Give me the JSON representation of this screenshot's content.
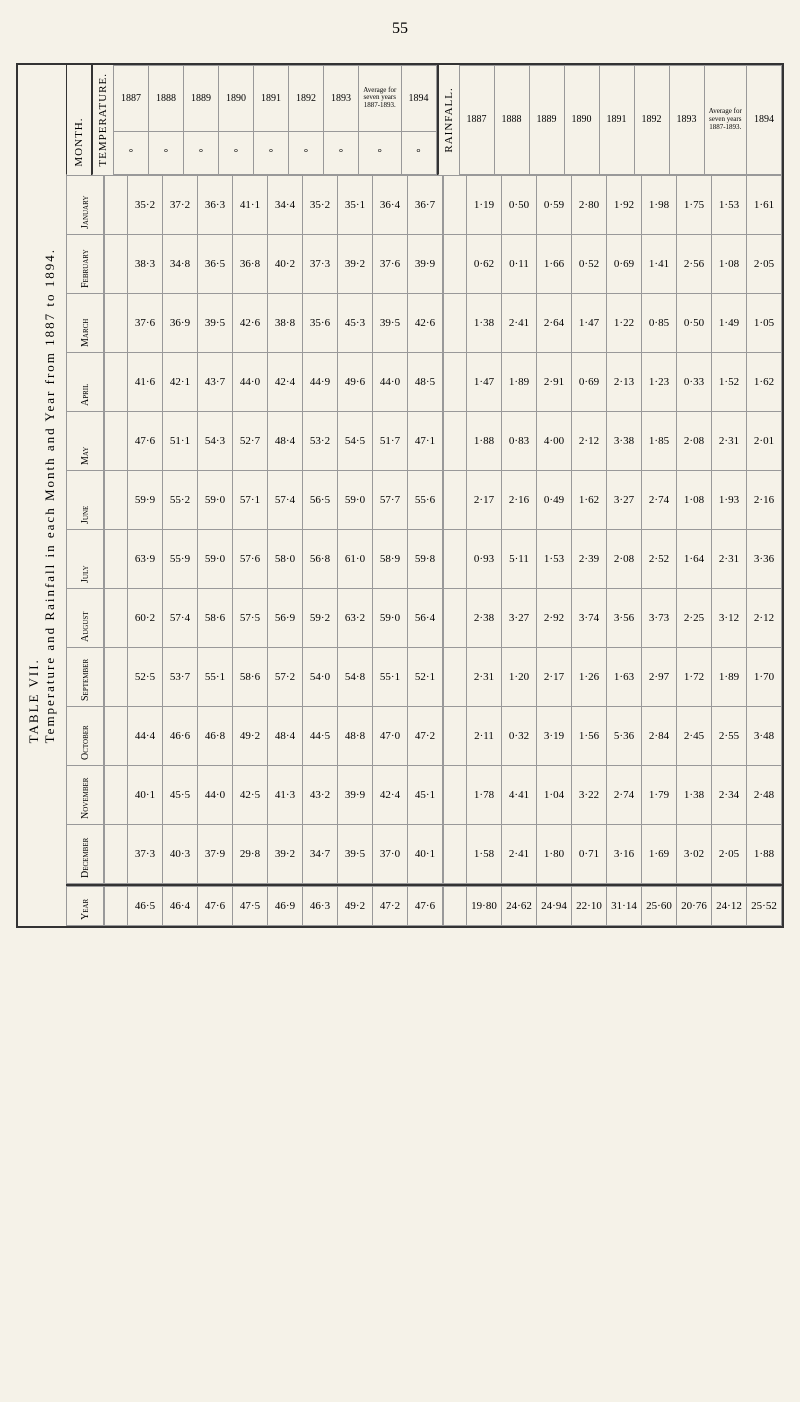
{
  "page_number": "55",
  "table_title": "TABLE VII.",
  "table_subtitle": "Temperature and Rainfall in each Month and Year from 1887 to 1894.",
  "month_header": "MONTH.",
  "year_row_label": "Year",
  "months": [
    "January",
    "February",
    "March",
    "April",
    "May",
    "June",
    "July",
    "August",
    "September",
    "October",
    "November",
    "December"
  ],
  "temperature": {
    "label": "TEMPERATURE.",
    "years": [
      "1887",
      "1888",
      "1889",
      "1890",
      "1891",
      "1892",
      "1893"
    ],
    "avg_label": "Average for seven years 1887-1893.",
    "final_year": "1894",
    "degree_prefix": "°",
    "data": {
      "1887": [
        "35·2",
        "38·3",
        "37·6",
        "41·6",
        "47·6",
        "59·9",
        "63·9",
        "60·2",
        "52·5",
        "44·4",
        "40·1",
        "37·3"
      ],
      "1888": [
        "37·2",
        "34·8",
        "36·9",
        "42·1",
        "51·1",
        "55·2",
        "55·9",
        "57·4",
        "53·7",
        "46·6",
        "45·5",
        "40·3"
      ],
      "1889": [
        "36·3",
        "36·5",
        "39·5",
        "43·7",
        "54·3",
        "59·0",
        "59·0",
        "58·6",
        "55·1",
        "46·8",
        "44·0",
        "37·9"
      ],
      "1890": [
        "41·1",
        "36·8",
        "42·6",
        "44·0",
        "52·7",
        "57·1",
        "57·6",
        "57·5",
        "58·6",
        "49·2",
        "42·5",
        "29·8"
      ],
      "1891": [
        "34·4",
        "40·2",
        "38·8",
        "42·4",
        "48·4",
        "57·4",
        "58·0",
        "56·9",
        "57·2",
        "48·4",
        "41·3",
        "39·2"
      ],
      "1892": [
        "35·2",
        "37·3",
        "35·6",
        "44·9",
        "53·2",
        "56·5",
        "56·8",
        "59·2",
        "54·0",
        "44·5",
        "43·2",
        "34·7"
      ],
      "1893": [
        "35·1",
        "39·2",
        "45·3",
        "49·6",
        "54·5",
        "59·0",
        "61·0",
        "63·2",
        "54·8",
        "48·8",
        "39·9",
        "39·5"
      ],
      "avg": [
        "36·4",
        "37·6",
        "39·5",
        "44·0",
        "51·7",
        "57·7",
        "58·9",
        "59·0",
        "55·1",
        "47·0",
        "42·4",
        "37·0"
      ],
      "1894": [
        "36·7",
        "39·9",
        "42·6",
        "48·5",
        "47·1",
        "55·6",
        "59·8",
        "56·4",
        "52·1",
        "47·2",
        "45·1",
        "40·1"
      ]
    },
    "year_totals": {
      "1887": "46·5",
      "1888": "46·4",
      "1889": "47·6",
      "1890": "47·5",
      "1891": "46·9",
      "1892": "46·3",
      "1893": "49·2",
      "avg": "47·2",
      "1894": "47·6"
    }
  },
  "rainfall": {
    "label": "RAINFALL.",
    "years": [
      "1887",
      "1888",
      "1889",
      "1890",
      "1891",
      "1892",
      "1893"
    ],
    "avg_label": "Average for seven years 1887-1893.",
    "final_year": "1894",
    "data": {
      "1887": [
        "1·19",
        "0·62",
        "1·38",
        "1·47",
        "1·88",
        "2·17",
        "0·93",
        "2·38",
        "2·31",
        "2·11",
        "1·78",
        "1·58"
      ],
      "1888": [
        "0·50",
        "0·11",
        "2·41",
        "1·89",
        "0·83",
        "2·16",
        "5·11",
        "3·27",
        "1·20",
        "0·32",
        "4·41",
        "2·41"
      ],
      "1889": [
        "0·59",
        "1·66",
        "2·64",
        "2·91",
        "4·00",
        "0·49",
        "1·53",
        "2·92",
        "2·17",
        "3·19",
        "1·04",
        "1·80"
      ],
      "1890": [
        "2·80",
        "0·52",
        "1·47",
        "0·69",
        "2·12",
        "1·62",
        "2·39",
        "3·74",
        "1·26",
        "1·56",
        "3·22",
        "0·71"
      ],
      "1891": [
        "1·92",
        "0·69",
        "1·22",
        "2·13",
        "3·38",
        "3·27",
        "2·08",
        "3·56",
        "1·63",
        "5·36",
        "2·74",
        "3·16"
      ],
      "1892": [
        "1·98",
        "1·41",
        "0·85",
        "1·23",
        "1·85",
        "2·74",
        "2·52",
        "3·73",
        "2·97",
        "2·84",
        "1·79",
        "1·69"
      ],
      "1893": [
        "1·75",
        "2·56",
        "0·50",
        "0·33",
        "2·08",
        "1·08",
        "1·64",
        "2·25",
        "1·72",
        "2·45",
        "1·38",
        "3·02"
      ],
      "avg": [
        "1·53",
        "1·08",
        "1·49",
        "1·52",
        "2·31",
        "1·93",
        "2·31",
        "3·12",
        "1·89",
        "2·55",
        "2·34",
        "2·05"
      ],
      "1894": [
        "1·61",
        "2·05",
        "1·05",
        "1·62",
        "2·01",
        "2·16",
        "3·36",
        "2·12",
        "1·70",
        "3·48",
        "2·48",
        "1·88"
      ]
    },
    "year_totals": {
      "1887": "19·80",
      "1888": "24·62",
      "1889": "24·94",
      "1890": "22·10",
      "1891": "31·14",
      "1892": "25·60",
      "1893": "20·76",
      "avg": "24·12",
      "1894": "25·52"
    }
  }
}
